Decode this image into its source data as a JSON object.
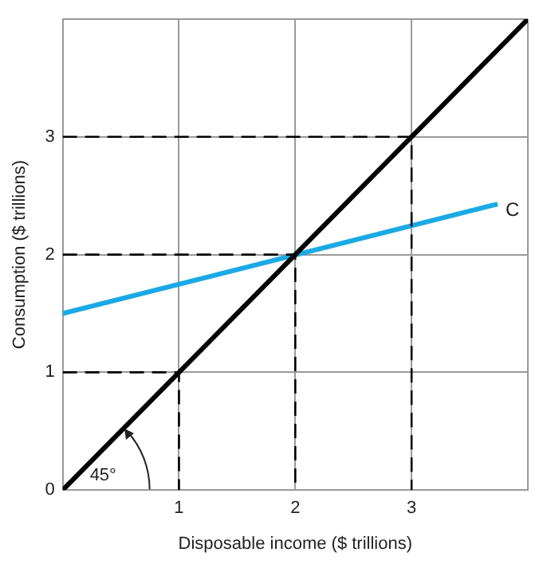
{
  "chart_data": {
    "type": "line",
    "xlabel": "Disposable income ($ trillions)",
    "ylabel": "Consumption ($ trillions)",
    "xlim": [
      0,
      4
    ],
    "ylim": [
      0,
      4
    ],
    "xticks": [
      {
        "value": 0,
        "label": null
      },
      1,
      2,
      3,
      {
        "value": 4,
        "label": null
      }
    ],
    "yticks": [
      0,
      1,
      2,
      3,
      {
        "value": 4,
        "label": null
      }
    ],
    "grid": true,
    "legend": false,
    "marker": "none",
    "annotations": [
      "45°"
    ],
    "series": [
      {
        "color": "#000000",
        "line_style": "dashed",
        "x": [
          0,
          1,
          1
        ],
        "values": [
          1,
          1,
          0
        ]
      },
      {
        "color": "#000000",
        "line_style": "dashed",
        "x": [
          0,
          2,
          2
        ],
        "values": [
          2,
          2,
          0
        ]
      },
      {
        "color": "#000000",
        "line_style": "dashed",
        "x": [
          0,
          3,
          3
        ],
        "values": [
          3,
          3,
          0
        ]
      },
      {
        "color": "#000000",
        "line_style": "solid",
        "x": [
          0,
          4
        ],
        "values": [
          0,
          4
        ]
      },
      {
        "name": "C",
        "color": "#1ba9e6",
        "line_style": "solid",
        "x": [
          0,
          3.74
        ],
        "values": [
          1.5,
          2.43
        ]
      }
    ]
  }
}
